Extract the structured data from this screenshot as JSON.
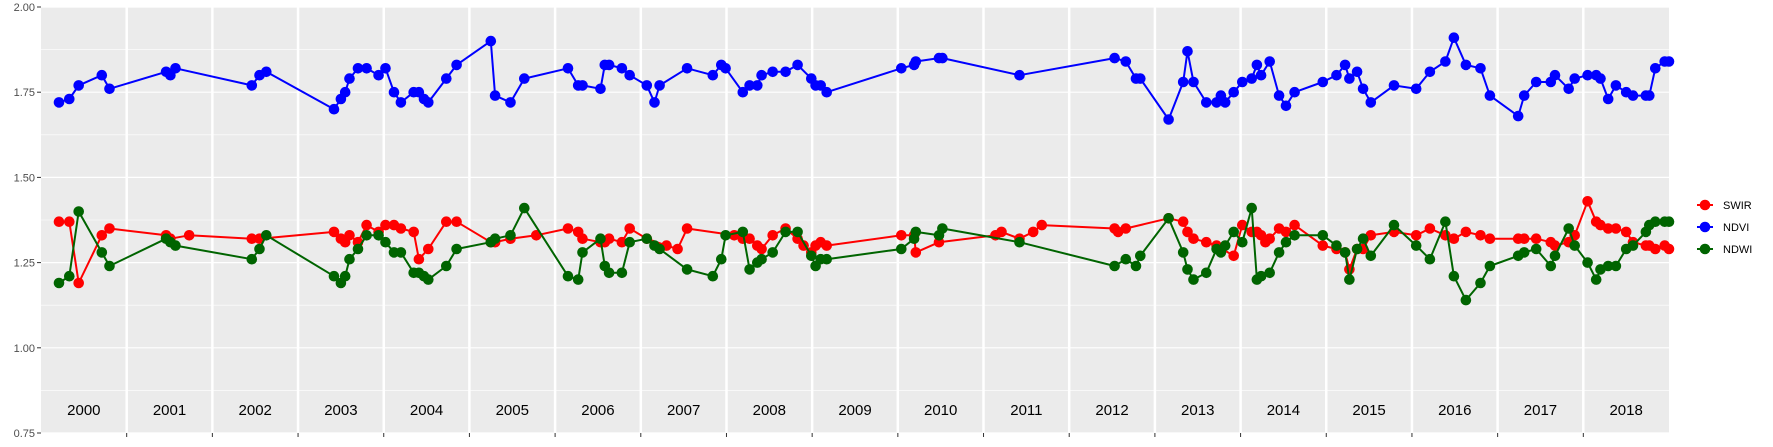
{
  "chart_data": {
    "type": "line",
    "title": "",
    "xlabel": "",
    "ylabel": "",
    "xlim": [
      2000.0,
      2019.0
    ],
    "ylim": [
      0.75,
      2.0
    ],
    "y_ticks": [
      "0.75",
      "1.00",
      "1.25",
      "1.50",
      "1.75",
      "2.00"
    ],
    "year_labels": [
      "2000",
      "2001",
      "2002",
      "2003",
      "2004",
      "2005",
      "2006",
      "2007",
      "2008",
      "2009",
      "2010",
      "2011",
      "2012",
      "2013",
      "2014",
      "2015",
      "2016",
      "2017",
      "2018"
    ],
    "grid": true,
    "legend_position": "right",
    "colors": {
      "panel": "#EBEBEB",
      "grid": "#FFFFFF",
      "axis_text": "#4D4D4D"
    },
    "series": [
      {
        "name": "SWIR",
        "color": "#FF0000",
        "x": [
          2000.21,
          2000.33,
          2000.44,
          2000.71,
          2000.8,
          2001.46,
          2001.51,
          2001.73,
          2002.46,
          2002.55,
          2003.42,
          2003.5,
          2003.55,
          2003.6,
          2003.7,
          2003.8,
          2003.94,
          2004.02,
          2004.12,
          2004.2,
          2004.35,
          2004.41,
          2004.52,
          2004.73,
          2004.85,
          2005.25,
          2005.3,
          2005.48,
          2005.78,
          2006.15,
          2006.27,
          2006.32,
          2006.53,
          2006.58,
          2006.63,
          2006.78,
          2006.87,
          2007.07,
          2007.3,
          2007.43,
          2007.54,
          2008.09,
          2008.19,
          2008.27,
          2008.36,
          2008.41,
          2008.54,
          2008.69,
          2008.83,
          2008.9,
          2008.99,
          2009.04,
          2009.1,
          2009.17,
          2010.04,
          2010.19,
          2010.21,
          2010.48,
          2011.14,
          2011.21,
          2011.42,
          2011.58,
          2011.68,
          2012.53,
          2012.57,
          2012.66,
          2013.16,
          2013.33,
          2013.38,
          2013.45,
          2013.6,
          2013.72,
          2013.92,
          2014.02,
          2014.13,
          2014.19,
          2014.24,
          2014.29,
          2014.34,
          2014.45,
          2014.53,
          2014.63,
          2014.96,
          2015.12,
          2015.22,
          2015.27,
          2015.36,
          2015.43,
          2015.52,
          2015.79,
          2016.05,
          2016.21,
          2016.39,
          2016.49,
          2016.63,
          2016.8,
          2016.91,
          2017.24,
          2017.31,
          2017.45,
          2017.62,
          2017.67,
          2017.83,
          2017.9,
          2018.05,
          2018.15,
          2018.2,
          2018.29,
          2018.38,
          2018.5,
          2018.58,
          2018.73,
          2018.77,
          2018.84,
          2018.95,
          2019.0
        ],
        "y": [
          1.37,
          1.37,
          1.19,
          1.33,
          1.35,
          1.33,
          1.32,
          1.33,
          1.32,
          1.32,
          1.34,
          1.32,
          1.31,
          1.33,
          1.31,
          1.36,
          1.34,
          1.36,
          1.36,
          1.35,
          1.34,
          1.26,
          1.29,
          1.37,
          1.37,
          1.31,
          1.31,
          1.32,
          1.33,
          1.35,
          1.34,
          1.32,
          1.31,
          1.31,
          1.32,
          1.31,
          1.35,
          1.32,
          1.3,
          1.29,
          1.35,
          1.33,
          1.32,
          1.32,
          1.3,
          1.29,
          1.33,
          1.35,
          1.32,
          1.3,
          1.28,
          1.3,
          1.31,
          1.3,
          1.33,
          1.33,
          1.28,
          1.31,
          1.33,
          1.34,
          1.32,
          1.34,
          1.36,
          1.35,
          1.34,
          1.35,
          1.38,
          1.37,
          1.34,
          1.32,
          1.31,
          1.3,
          1.27,
          1.36,
          1.34,
          1.34,
          1.33,
          1.31,
          1.32,
          1.35,
          1.34,
          1.36,
          1.3,
          1.29,
          1.28,
          1.23,
          1.29,
          1.29,
          1.33,
          1.34,
          1.33,
          1.35,
          1.33,
          1.32,
          1.34,
          1.33,
          1.32,
          1.32,
          1.32,
          1.32,
          1.31,
          1.3,
          1.31,
          1.33,
          1.43,
          1.37,
          1.36,
          1.35,
          1.35,
          1.34,
          1.31,
          1.3,
          1.3,
          1.29,
          1.3,
          1.29
        ]
      },
      {
        "name": "NDVI",
        "color": "#0000FF",
        "x": [
          2000.21,
          2000.33,
          2000.44,
          2000.71,
          2000.8,
          2001.46,
          2001.51,
          2001.57,
          2002.46,
          2002.55,
          2002.63,
          2003.42,
          2003.5,
          2003.55,
          2003.6,
          2003.7,
          2003.8,
          2003.94,
          2004.02,
          2004.12,
          2004.2,
          2004.35,
          2004.41,
          2004.47,
          2004.52,
          2004.73,
          2004.85,
          2005.25,
          2005.3,
          2005.48,
          2005.64,
          2006.15,
          2006.27,
          2006.32,
          2006.53,
          2006.58,
          2006.63,
          2006.78,
          2006.87,
          2007.07,
          2007.16,
          2007.22,
          2007.54,
          2007.84,
          2007.94,
          2007.99,
          2008.19,
          2008.27,
          2008.36,
          2008.41,
          2008.54,
          2008.69,
          2008.83,
          2008.99,
          2009.04,
          2009.1,
          2009.17,
          2010.04,
          2010.19,
          2010.21,
          2010.48,
          2010.52,
          2011.42,
          2012.53,
          2012.66,
          2012.78,
          2012.83,
          2013.16,
          2013.33,
          2013.38,
          2013.45,
          2013.6,
          2013.72,
          2013.77,
          2013.82,
          2013.92,
          2014.02,
          2014.13,
          2014.19,
          2014.24,
          2014.34,
          2014.45,
          2014.53,
          2014.63,
          2014.96,
          2015.12,
          2015.22,
          2015.27,
          2015.36,
          2015.43,
          2015.52,
          2015.79,
          2016.05,
          2016.21,
          2016.39,
          2016.49,
          2016.63,
          2016.8,
          2016.91,
          2017.24,
          2017.31,
          2017.45,
          2017.62,
          2017.67,
          2017.83,
          2017.9,
          2018.05,
          2018.15,
          2018.2,
          2018.29,
          2018.38,
          2018.5,
          2018.58,
          2018.73,
          2018.77,
          2018.84,
          2018.95,
          2019.0
        ],
        "y": [
          1.72,
          1.73,
          1.77,
          1.8,
          1.76,
          1.81,
          1.8,
          1.82,
          1.77,
          1.8,
          1.81,
          1.7,
          1.73,
          1.75,
          1.79,
          1.82,
          1.82,
          1.8,
          1.82,
          1.75,
          1.72,
          1.75,
          1.75,
          1.73,
          1.72,
          1.79,
          1.83,
          1.9,
          1.74,
          1.72,
          1.79,
          1.82,
          1.77,
          1.77,
          1.76,
          1.83,
          1.83,
          1.82,
          1.8,
          1.77,
          1.72,
          1.77,
          1.82,
          1.8,
          1.83,
          1.82,
          1.75,
          1.77,
          1.77,
          1.8,
          1.81,
          1.81,
          1.83,
          1.79,
          1.77,
          1.77,
          1.75,
          1.82,
          1.83,
          1.84,
          1.85,
          1.85,
          1.8,
          1.85,
          1.84,
          1.79,
          1.79,
          1.67,
          1.78,
          1.87,
          1.78,
          1.72,
          1.72,
          1.74,
          1.72,
          1.75,
          1.78,
          1.79,
          1.83,
          1.8,
          1.84,
          1.74,
          1.71,
          1.75,
          1.78,
          1.8,
          1.83,
          1.79,
          1.81,
          1.76,
          1.72,
          1.77,
          1.76,
          1.81,
          1.84,
          1.91,
          1.83,
          1.82,
          1.74,
          1.68,
          1.74,
          1.78,
          1.78,
          1.8,
          1.76,
          1.79,
          1.8,
          1.8,
          1.79,
          1.73,
          1.77,
          1.75,
          1.74,
          1.74,
          1.74,
          1.82,
          1.84,
          1.84
        ]
      },
      {
        "name": "NDWI",
        "color": "#006400",
        "x": [
          2000.21,
          2000.33,
          2000.44,
          2000.71,
          2000.8,
          2001.46,
          2001.51,
          2001.57,
          2002.46,
          2002.55,
          2002.63,
          2003.42,
          2003.5,
          2003.55,
          2003.6,
          2003.7,
          2003.8,
          2003.94,
          2004.02,
          2004.12,
          2004.2,
          2004.35,
          2004.41,
          2004.47,
          2004.52,
          2004.73,
          2004.85,
          2005.25,
          2005.3,
          2005.48,
          2005.64,
          2006.15,
          2006.27,
          2006.32,
          2006.53,
          2006.58,
          2006.63,
          2006.78,
          2006.87,
          2007.07,
          2007.16,
          2007.22,
          2007.54,
          2007.84,
          2007.94,
          2007.99,
          2008.19,
          2008.27,
          2008.36,
          2008.41,
          2008.54,
          2008.69,
          2008.83,
          2008.99,
          2009.04,
          2009.1,
          2009.17,
          2010.04,
          2010.19,
          2010.21,
          2010.48,
          2010.52,
          2011.42,
          2012.53,
          2012.66,
          2012.78,
          2012.83,
          2013.16,
          2013.33,
          2013.38,
          2013.45,
          2013.6,
          2013.72,
          2013.77,
          2013.82,
          2013.92,
          2014.02,
          2014.13,
          2014.19,
          2014.24,
          2014.34,
          2014.45,
          2014.53,
          2014.63,
          2014.96,
          2015.12,
          2015.22,
          2015.27,
          2015.36,
          2015.43,
          2015.52,
          2015.79,
          2016.05,
          2016.21,
          2016.39,
          2016.49,
          2016.63,
          2016.8,
          2016.91,
          2017.24,
          2017.31,
          2017.45,
          2017.62,
          2017.67,
          2017.83,
          2017.9,
          2018.05,
          2018.15,
          2018.2,
          2018.29,
          2018.38,
          2018.5,
          2018.58,
          2018.73,
          2018.77,
          2018.84,
          2018.95,
          2019.0
        ],
        "y": [
          1.19,
          1.21,
          1.4,
          1.28,
          1.24,
          1.32,
          1.31,
          1.3,
          1.26,
          1.29,
          1.33,
          1.21,
          1.19,
          1.21,
          1.26,
          1.29,
          1.33,
          1.33,
          1.31,
          1.28,
          1.28,
          1.22,
          1.22,
          1.21,
          1.2,
          1.24,
          1.29,
          1.31,
          1.32,
          1.33,
          1.41,
          1.21,
          1.2,
          1.28,
          1.32,
          1.24,
          1.22,
          1.22,
          1.31,
          1.32,
          1.3,
          1.29,
          1.23,
          1.21,
          1.26,
          1.33,
          1.34,
          1.23,
          1.25,
          1.26,
          1.28,
          1.34,
          1.34,
          1.27,
          1.24,
          1.26,
          1.26,
          1.29,
          1.32,
          1.34,
          1.33,
          1.35,
          1.31,
          1.24,
          1.26,
          1.24,
          1.27,
          1.38,
          1.28,
          1.23,
          1.2,
          1.22,
          1.29,
          1.28,
          1.3,
          1.34,
          1.31,
          1.41,
          1.2,
          1.21,
          1.22,
          1.28,
          1.31,
          1.33,
          1.33,
          1.3,
          1.28,
          1.2,
          1.29,
          1.32,
          1.27,
          1.36,
          1.3,
          1.26,
          1.37,
          1.21,
          1.14,
          1.19,
          1.24,
          1.27,
          1.28,
          1.29,
          1.24,
          1.27,
          1.35,
          1.3,
          1.25,
          1.2,
          1.23,
          1.24,
          1.24,
          1.29,
          1.3,
          1.34,
          1.36,
          1.37,
          1.37,
          1.37
        ]
      }
    ]
  }
}
